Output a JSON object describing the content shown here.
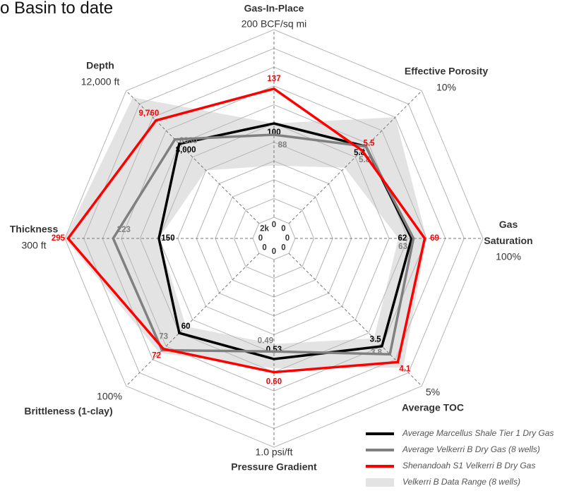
{
  "chart_data": {
    "type": "radar",
    "title": "o Basin to date",
    "axes": [
      {
        "name": "Gas-In-Place",
        "min": 0,
        "max": {
          "value": 200,
          "label": "200 BCF/sq mi"
        }
      },
      {
        "name": "Effective Porosity",
        "min": 0,
        "max": {
          "value": 10,
          "label": "10%"
        }
      },
      {
        "name": "Gas Saturation",
        "min": 0,
        "max": {
          "value": 100,
          "label": "100%"
        }
      },
      {
        "name": "Average TOC",
        "min": 0,
        "max": {
          "value": 5,
          "label": "5%"
        }
      },
      {
        "name": "Pressure Gradient",
        "min": 0,
        "max": {
          "value": 1.0,
          "label": "1.0 psi/ft"
        }
      },
      {
        "name": "Brittleness (1-clay)",
        "min": 0,
        "max": {
          "value": 100,
          "label": "100%"
        }
      },
      {
        "name": "Thickness",
        "min": 0,
        "max": {
          "value": 300,
          "label": "300 ft"
        }
      },
      {
        "name": "Depth",
        "min": {
          "value": 2000,
          "label": "2k"
        },
        "max": {
          "value": 12000,
          "label": "12,000 ft"
        }
      }
    ],
    "band": {
      "name": "Velkerri B Data Range (8 wells)",
      "color": "#e3e3e3",
      "low": [
        55,
        4.2,
        55,
        3.2,
        0.45,
        55,
        150,
        6000
      ],
      "high": [
        100,
        8,
        70,
        4.3,
        0.58,
        75,
        300,
        11500
      ]
    },
    "series": [
      {
        "name": "Average Marcellus Shale Tier 1 Dry Gas",
        "color": "#000000",
        "values": [
          100,
          5.8,
          62,
          3.5,
          0.53,
          60,
          150,
          8000
        ],
        "value_labels": [
          "100",
          "5.8",
          "62",
          "3.5",
          "0.53",
          "60",
          "150",
          "8,000"
        ]
      },
      {
        "name": "Average Velkerri B Dry Gas (8 wells)",
        "color": "#808080",
        "values": [
          88,
          5.8,
          63,
          3.8,
          0.49,
          73,
          223,
          8330
        ],
        "value_labels": [
          "88",
          "5.8",
          "63",
          "3.8",
          "0.49",
          "73",
          "223",
          "8330"
        ]
      },
      {
        "name": "Shenandoah S1 Velkerri B Dry Gas",
        "color": "#ff0000",
        "values": [
          137,
          5.5,
          69,
          4.1,
          0.6,
          72,
          295,
          9760
        ],
        "value_labels": [
          "137",
          "5.5",
          "69",
          "4.1",
          "0.60",
          "72",
          "295",
          "9,760"
        ]
      }
    ]
  }
}
